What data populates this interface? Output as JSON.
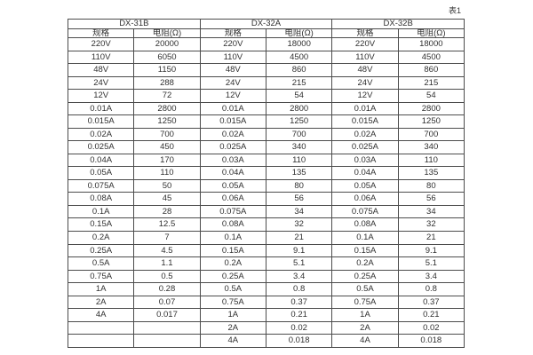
{
  "page": {
    "table_tag": "表1"
  },
  "chart_data": {
    "type": "table",
    "title": "表1",
    "groups": [
      {
        "name": "DX-31B"
      },
      {
        "name": "DX-32A"
      },
      {
        "name": "DX-32B"
      }
    ],
    "column_headers": {
      "spec": "规格",
      "resistance": "电阻(Ω)"
    },
    "rows": [
      [
        "220V",
        "20000",
        "220V",
        "18000",
        "220V",
        "18000"
      ],
      [
        "110V",
        "6050",
        "110V",
        "4500",
        "110V",
        "4500"
      ],
      [
        "48V",
        "1150",
        "48V",
        "860",
        "48V",
        "860"
      ],
      [
        "24V",
        "288",
        "24V",
        "215",
        "24V",
        "215"
      ],
      [
        "12V",
        "72",
        "12V",
        "54",
        "12V",
        "54"
      ],
      [
        "0.01A",
        "2800",
        "0.01A",
        "2800",
        "0.01A",
        "2800"
      ],
      [
        "0.015A",
        "1250",
        "0.015A",
        "1250",
        "0.015A",
        "1250"
      ],
      [
        "0.02A",
        "700",
        "0.02A",
        "700",
        "0.02A",
        "700"
      ],
      [
        "0.025A",
        "450",
        "0.025A",
        "340",
        "0.025A",
        "340"
      ],
      [
        "0.04A",
        "170",
        "0.03A",
        "110",
        "0.03A",
        "110"
      ],
      [
        "0.05A",
        "110",
        "0.04A",
        "135",
        "0.04A",
        "135"
      ],
      [
        "0.075A",
        "50",
        "0.05A",
        "80",
        "0.05A",
        "80"
      ],
      [
        "0.08A",
        "45",
        "0.06A",
        "56",
        "0.06A",
        "56"
      ],
      [
        "0.1A",
        "28",
        "0.075A",
        "34",
        "0.075A",
        "34"
      ],
      [
        "0.15A",
        "12.5",
        "0.08A",
        "32",
        "0.08A",
        "32"
      ],
      [
        "0.2A",
        "7",
        "0.1A",
        "21",
        "0.1A",
        "21"
      ],
      [
        "0.25A",
        "4.5",
        "0.15A",
        "9.1",
        "0.15A",
        "9.1"
      ],
      [
        "0.5A",
        "1.1",
        "0.2A",
        "5.1",
        "0.2A",
        "5.1"
      ],
      [
        "0.75A",
        "0.5",
        "0.25A",
        "3.4",
        "0.25A",
        "3.4"
      ],
      [
        "1A",
        "0.28",
        "0.5A",
        "0.8",
        "0.5A",
        "0.8"
      ],
      [
        "2A",
        "0.07",
        "0.75A",
        "0.37",
        "0.75A",
        "0.37"
      ],
      [
        "4A",
        "0.017",
        "1A",
        "0.21",
        "1A",
        "0.21"
      ],
      [
        "",
        "",
        "2A",
        "0.02",
        "2A",
        "0.02"
      ],
      [
        "",
        "",
        "4A",
        "0.018",
        "4A",
        "0.018"
      ]
    ]
  }
}
